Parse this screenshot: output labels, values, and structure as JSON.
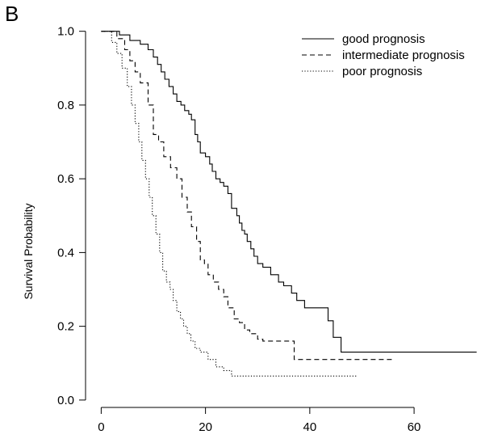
{
  "panel_label": "B",
  "chart_data": {
    "type": "line",
    "title": "",
    "xlabel": "",
    "ylabel": "Survival Probability",
    "xlim": [
      -3,
      75
    ],
    "ylim": [
      -0.02,
      1.03
    ],
    "x_ticks": [
      0,
      20,
      40,
      60
    ],
    "y_ticks": [
      0.0,
      0.2,
      0.4,
      0.6,
      0.8,
      1.0
    ],
    "y_tick_labels": [
      "0.0",
      "0.2",
      "0.4",
      "0.6",
      "0.8",
      "1.0"
    ],
    "grid": false,
    "legend_position": "top-right",
    "step": true,
    "series": [
      {
        "name": "good prognosis",
        "dash": "solid",
        "x": [
          0,
          3.5,
          5.5,
          7.5,
          9,
          10,
          10.8,
          11.5,
          12.2,
          13,
          13.8,
          14.5,
          15.3,
          16,
          16.8,
          17.3,
          18,
          18.5,
          19,
          20,
          20.8,
          21.3,
          22,
          22.8,
          23.5,
          24.3,
          25,
          26,
          26.5,
          27,
          27.5,
          28,
          28.7,
          29.3,
          30,
          31,
          32.5,
          34,
          35,
          36.5,
          37.5,
          39,
          41,
          43.5,
          44.5,
          46,
          72
        ],
        "y": [
          1.0,
          0.99,
          0.975,
          0.965,
          0.95,
          0.93,
          0.91,
          0.89,
          0.87,
          0.85,
          0.83,
          0.81,
          0.8,
          0.785,
          0.775,
          0.76,
          0.72,
          0.7,
          0.67,
          0.66,
          0.64,
          0.62,
          0.6,
          0.59,
          0.58,
          0.56,
          0.52,
          0.5,
          0.48,
          0.46,
          0.45,
          0.43,
          0.41,
          0.39,
          0.37,
          0.36,
          0.34,
          0.32,
          0.31,
          0.29,
          0.27,
          0.25,
          0.25,
          0.215,
          0.17,
          0.13,
          0.13
        ]
      },
      {
        "name": "intermediate prognosis",
        "dash": "dashed",
        "x": [
          0,
          3,
          4.5,
          5.5,
          6.5,
          7.5,
          9,
          10,
          11,
          12,
          13.3,
          14.5,
          15.5,
          16.5,
          17.3,
          18.3,
          19,
          19.8,
          20.5,
          21.5,
          22.5,
          23.5,
          24.3,
          25.5,
          26.5,
          27.5,
          28.5,
          30,
          31,
          37,
          56
        ],
        "y": [
          1.0,
          0.98,
          0.95,
          0.92,
          0.89,
          0.86,
          0.8,
          0.72,
          0.7,
          0.66,
          0.63,
          0.6,
          0.55,
          0.51,
          0.47,
          0.43,
          0.38,
          0.37,
          0.34,
          0.32,
          0.3,
          0.28,
          0.25,
          0.22,
          0.21,
          0.19,
          0.18,
          0.165,
          0.16,
          0.11,
          0.11
        ]
      },
      {
        "name": "poor prognosis",
        "dash": "dotted",
        "x": [
          0,
          2,
          3,
          4,
          5,
          5.8,
          6.5,
          7.2,
          7.8,
          8.5,
          9.2,
          9.8,
          10.5,
          11.2,
          11.8,
          12.5,
          13.2,
          13.8,
          14.5,
          15.2,
          15.8,
          16.5,
          17.2,
          18,
          19,
          20.5,
          22,
          23.5,
          25,
          49
        ],
        "y": [
          1.0,
          0.97,
          0.94,
          0.9,
          0.85,
          0.8,
          0.75,
          0.7,
          0.65,
          0.6,
          0.55,
          0.5,
          0.45,
          0.4,
          0.35,
          0.32,
          0.3,
          0.27,
          0.24,
          0.22,
          0.2,
          0.18,
          0.16,
          0.14,
          0.13,
          0.11,
          0.09,
          0.08,
          0.065,
          0.065
        ]
      }
    ]
  }
}
